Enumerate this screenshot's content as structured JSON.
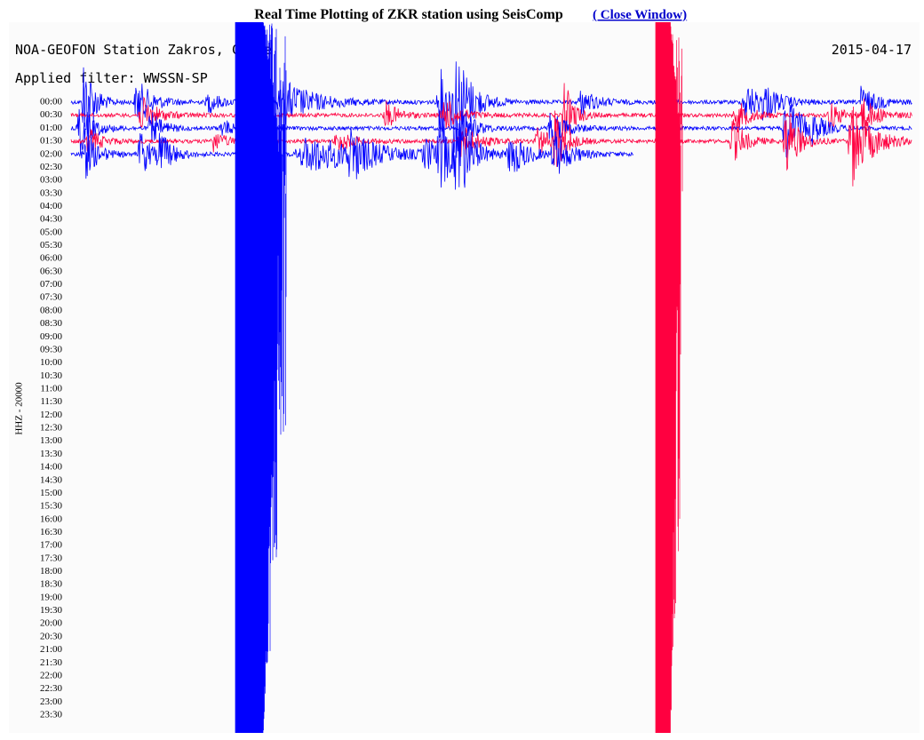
{
  "header": {
    "title": "Real Time Plotting of ZKR station using SeisComp",
    "link": "( Close Window)"
  },
  "plot": {
    "station": "NOA-GEOFON Station Zakros, Crete",
    "filter": "Applied filter: WWSSN-SP",
    "date": "2015-04-17",
    "channel": "HHZ - 20000",
    "times": [
      "00:00",
      "00:30",
      "01:00",
      "01:30",
      "02:00",
      "02:30",
      "03:00",
      "03:30",
      "04:00",
      "04:30",
      "05:00",
      "05:30",
      "06:00",
      "06:30",
      "07:00",
      "07:30",
      "08:00",
      "08:30",
      "09:00",
      "09:30",
      "10:00",
      "10:30",
      "11:00",
      "11:30",
      "12:00",
      "12:30",
      "13:00",
      "13:30",
      "14:00",
      "14:30",
      "15:00",
      "15:30",
      "16:00",
      "16:30",
      "17:00",
      "17:30",
      "18:00",
      "18:30",
      "19:00",
      "19:30",
      "20:00",
      "20:30",
      "21:00",
      "21:30",
      "22:00",
      "22:30",
      "23:00",
      "23:30"
    ]
  }
}
